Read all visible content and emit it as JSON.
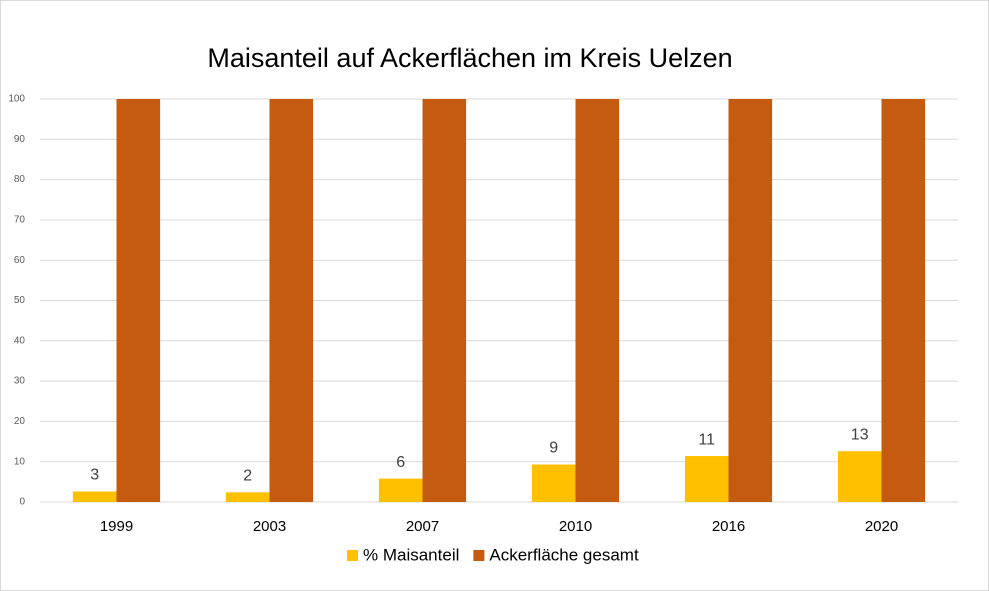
{
  "chart_data": {
    "type": "bar",
    "title": "Maisanteil auf Ackerflächen im Kreis Uelzen",
    "categories": [
      "1999",
      "2003",
      "2007",
      "2010",
      "2016",
      "2020"
    ],
    "series": [
      {
        "name": "% Maisanteil",
        "color": "#ffc000",
        "values": [
          2.6,
          2.4,
          5.8,
          9.3,
          11.4,
          12.6
        ],
        "value_labels": [
          "3",
          "2",
          "6",
          "9",
          "11",
          "13"
        ]
      },
      {
        "name": "Ackerfläche gesamt",
        "color": "#c55a11",
        "values": [
          100,
          100,
          100,
          100,
          100,
          100
        ]
      }
    ],
    "ylim": [
      0,
      100
    ],
    "yticks": [
      0,
      10,
      20,
      30,
      40,
      50,
      60,
      70,
      80,
      90,
      100
    ],
    "grid": true,
    "legend": "bottom"
  }
}
